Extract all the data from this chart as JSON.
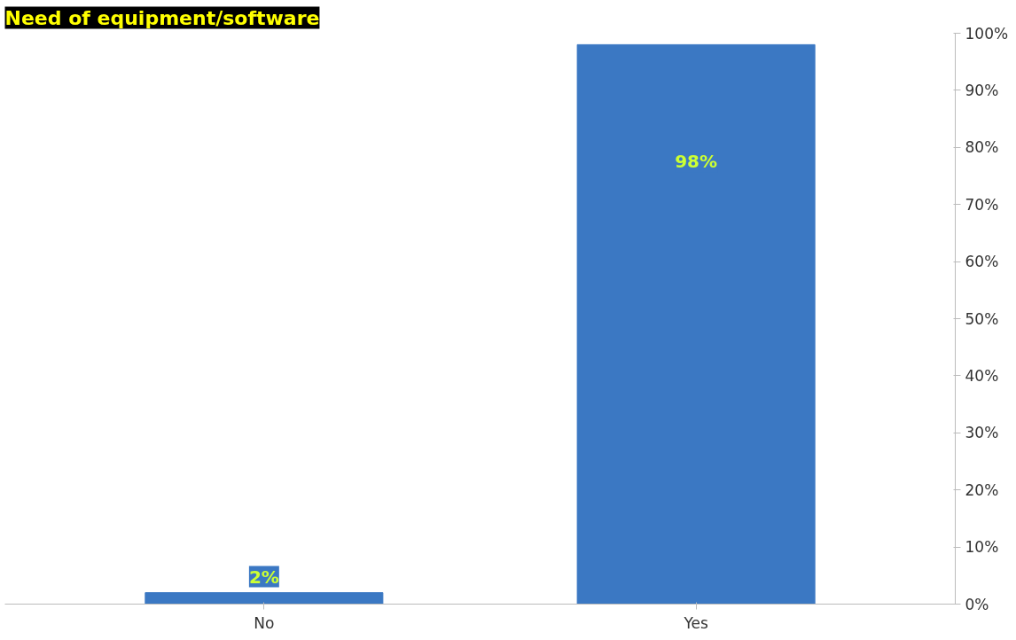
{
  "chart_data": {
    "type": "bar",
    "title": "Need of equipment/software",
    "categories": [
      "No",
      "Yes"
    ],
    "values": [
      2,
      98
    ],
    "color": "#3b78c3",
    "value_labels": [
      "2%",
      "98%"
    ],
    "ylim": [
      0,
      100
    ],
    "yticks": [
      {
        "value": 0,
        "label": "0%"
      },
      {
        "value": 10,
        "label": "10%"
      },
      {
        "value": 20,
        "label": "20%"
      },
      {
        "value": 30,
        "label": "30%"
      },
      {
        "value": 40,
        "label": "40%"
      },
      {
        "value": 50,
        "label": "50%"
      },
      {
        "value": 60,
        "label": "60%"
      },
      {
        "value": 70,
        "label": "70%"
      },
      {
        "value": 80,
        "label": "80%"
      },
      {
        "value": 90,
        "label": "90%"
      },
      {
        "value": 100,
        "label": "100%"
      }
    ],
    "grid": false
  }
}
